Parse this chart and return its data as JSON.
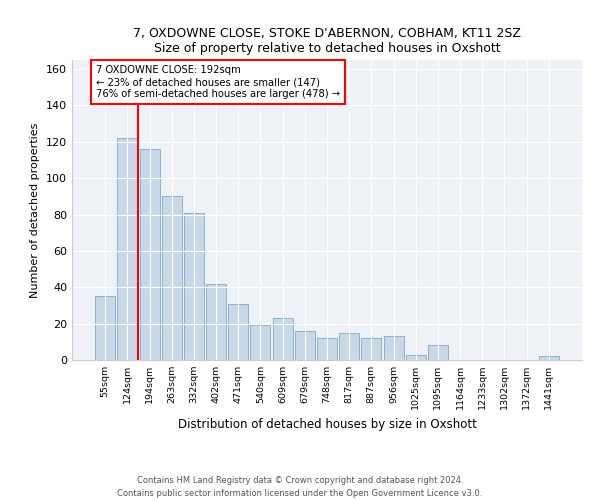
{
  "title1": "7, OXDOWNE CLOSE, STOKE D'ABERNON, COBHAM, KT11 2SZ",
  "title2": "Size of property relative to detached houses in Oxshott",
  "xlabel": "Distribution of detached houses by size in Oxshott",
  "ylabel": "Number of detached properties",
  "bar_color": "#c8d8e8",
  "bar_edge_color": "#8ab4cc",
  "categories": [
    "55sqm",
    "124sqm",
    "194sqm",
    "263sqm",
    "332sqm",
    "402sqm",
    "471sqm",
    "540sqm",
    "609sqm",
    "679sqm",
    "748sqm",
    "817sqm",
    "887sqm",
    "956sqm",
    "1025sqm",
    "1095sqm",
    "1164sqm",
    "1233sqm",
    "1302sqm",
    "1372sqm",
    "1441sqm"
  ],
  "values": [
    35,
    122,
    116,
    90,
    81,
    42,
    31,
    19,
    23,
    16,
    12,
    15,
    12,
    13,
    3,
    8,
    0,
    0,
    0,
    0,
    2
  ],
  "annotation_line1": "7 OXDOWNE CLOSE: 192sqm",
  "annotation_line2": "← 23% of detached houses are smaller (147)",
  "annotation_line3": "76% of semi-detached houses are larger (478) →",
  "red_line_x": 1.5,
  "ylim": [
    0,
    165
  ],
  "yticks": [
    0,
    20,
    40,
    60,
    80,
    100,
    120,
    140,
    160
  ],
  "footer": "Contains HM Land Registry data © Crown copyright and database right 2024.\nContains public sector information licensed under the Open Government Licence v3.0.",
  "background_color": "#eef2f7"
}
